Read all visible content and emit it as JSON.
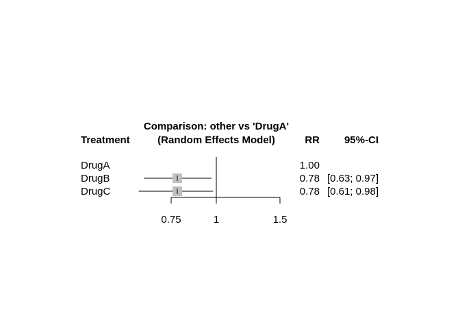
{
  "chart_data": {
    "type": "forest",
    "title_line1": "Comparison: other vs 'DrugA'",
    "title_line2": "(Random Effects Model)",
    "columns": {
      "treatment": "Treatment",
      "rr": "RR",
      "ci": "95%-CI"
    },
    "reference_value": 1,
    "xlim": [
      0.6,
      1.5
    ],
    "x_ticks": [
      0.75,
      1,
      1.5
    ],
    "x_tick_labels": [
      "0.75",
      "1",
      "1.5"
    ],
    "log_scale": true,
    "rows": [
      {
        "label": "DrugA",
        "rr": 1.0,
        "lower": null,
        "upper": null,
        "rr_text": "1.00",
        "ci_text": ""
      },
      {
        "label": "DrugB",
        "rr": 0.78,
        "lower": 0.63,
        "upper": 0.97,
        "rr_text": "0.78",
        "ci_text": "[0.63; 0.97]"
      },
      {
        "label": "DrugC",
        "rr": 0.78,
        "lower": 0.61,
        "upper": 0.98,
        "rr_text": "0.78",
        "ci_text": "[0.61; 0.98]"
      }
    ],
    "colors": {
      "box": "#c0c0c0",
      "line": "#000000"
    }
  }
}
